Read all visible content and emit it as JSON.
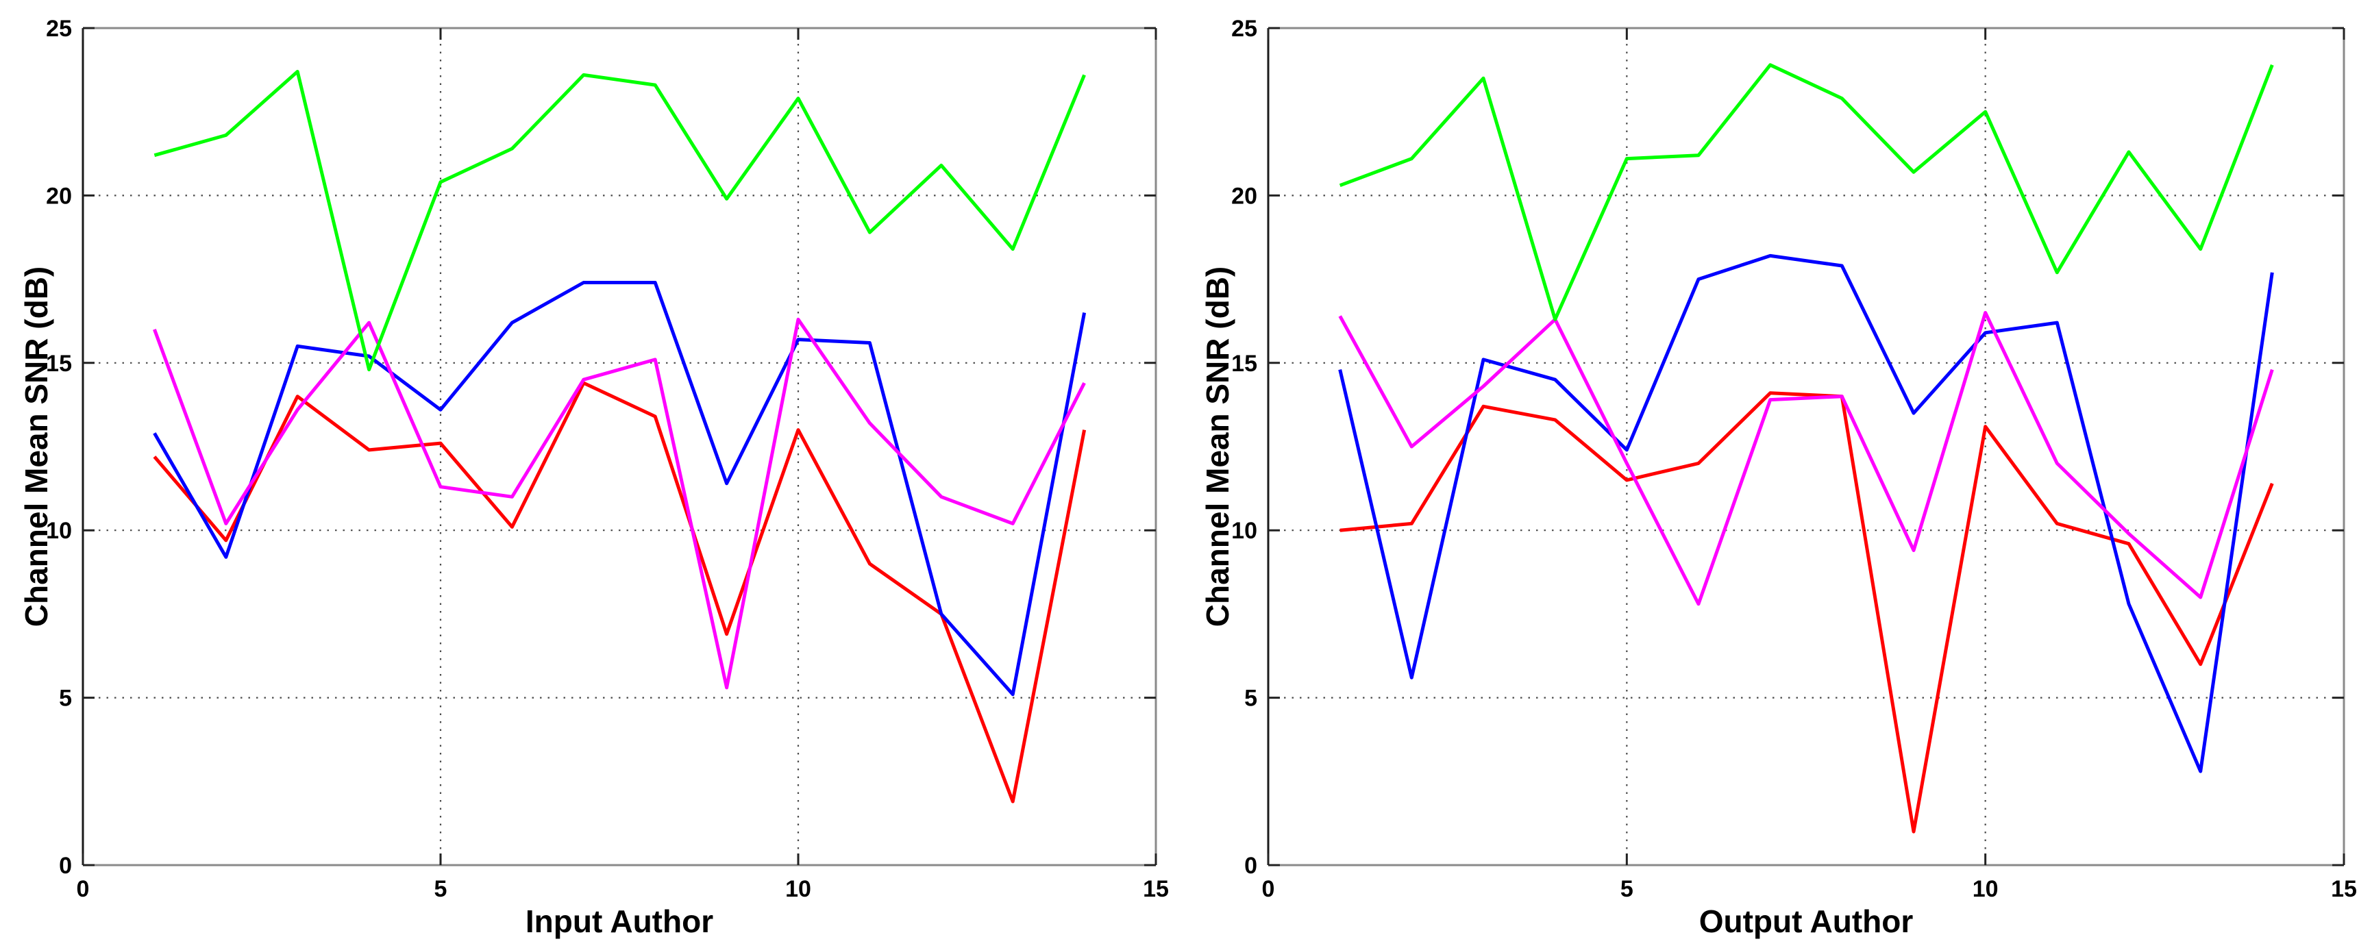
{
  "figure": {
    "background": "#FFFFFF",
    "description": "Two side-by-side MATLAB-style line plots of Channel Mean SNR (dB) versus author index"
  },
  "chart_data": [
    {
      "type": "line",
      "title": "",
      "xlabel": "Input Author",
      "ylabel": "Channel Mean SNR (dB)",
      "x": [
        1,
        2,
        3,
        4,
        5,
        6,
        7,
        8,
        9,
        10,
        11,
        12,
        13,
        14
      ],
      "xlim": [
        0,
        15
      ],
      "ylim": [
        0,
        25
      ],
      "xticks": [
        0,
        5,
        10,
        15
      ],
      "yticks": [
        0,
        5,
        10,
        15,
        20,
        25
      ],
      "grid_x": [
        5,
        10
      ],
      "grid_y": [
        5,
        10,
        15,
        20
      ],
      "grid": "dotted",
      "legend": "none",
      "series": [
        {
          "name": "red-line",
          "color": "#FF0000",
          "values": [
            12.2,
            9.7,
            14.0,
            12.4,
            12.6,
            10.1,
            14.4,
            13.4,
            6.9,
            13.0,
            9.0,
            7.5,
            1.9,
            13.0
          ]
        },
        {
          "name": "blue-line",
          "color": "#0000FF",
          "values": [
            12.9,
            9.2,
            15.5,
            15.2,
            13.6,
            16.2,
            17.4,
            17.4,
            11.4,
            15.7,
            15.6,
            7.5,
            5.1,
            16.5
          ]
        },
        {
          "name": "magenta-line",
          "color": "#FF00FF",
          "values": [
            16.0,
            10.2,
            13.6,
            16.2,
            11.3,
            11.0,
            14.5,
            15.1,
            5.3,
            16.3,
            13.2,
            11.0,
            10.2,
            14.4
          ]
        },
        {
          "name": "green-line",
          "color": "#00FF00",
          "values": [
            21.2,
            21.8,
            23.7,
            14.8,
            20.4,
            21.4,
            23.6,
            23.3,
            19.9,
            22.9,
            18.9,
            20.9,
            18.4,
            23.6
          ]
        }
      ]
    },
    {
      "type": "line",
      "title": "",
      "xlabel": "Output Author",
      "ylabel": "Channel Mean SNR (dB)",
      "x": [
        1,
        2,
        3,
        4,
        5,
        6,
        7,
        8,
        9,
        10,
        11,
        12,
        13,
        14
      ],
      "xlim": [
        0,
        15
      ],
      "ylim": [
        0,
        25
      ],
      "xticks": [
        0,
        5,
        10,
        15
      ],
      "yticks": [
        0,
        5,
        10,
        15,
        20,
        25
      ],
      "grid_x": [
        5,
        10
      ],
      "grid_y": [
        5,
        10,
        15,
        20
      ],
      "grid": "dotted",
      "legend": "none",
      "series": [
        {
          "name": "red-line",
          "color": "#FF0000",
          "values": [
            10.0,
            10.2,
            13.7,
            13.3,
            11.5,
            12.0,
            14.1,
            14.0,
            1.0,
            13.1,
            10.2,
            9.6,
            6.0,
            11.4
          ]
        },
        {
          "name": "blue-line",
          "color": "#0000FF",
          "values": [
            14.8,
            5.6,
            15.1,
            14.5,
            12.4,
            17.5,
            18.2,
            17.9,
            13.5,
            15.9,
            16.2,
            7.8,
            2.8,
            17.7
          ]
        },
        {
          "name": "magenta-line",
          "color": "#FF00FF",
          "values": [
            16.4,
            12.5,
            14.3,
            16.3,
            12.0,
            7.8,
            13.9,
            14.0,
            9.4,
            16.5,
            12.0,
            9.9,
            8.0,
            14.8
          ]
        },
        {
          "name": "green-line",
          "color": "#00FF00",
          "values": [
            20.3,
            21.1,
            23.5,
            16.3,
            21.1,
            21.2,
            23.9,
            22.9,
            20.7,
            22.5,
            17.7,
            21.3,
            18.4,
            23.9
          ]
        }
      ]
    }
  ]
}
